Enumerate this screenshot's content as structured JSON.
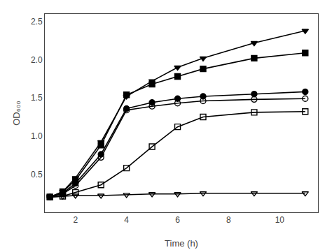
{
  "chart_data": {
    "type": "line",
    "xlabel": "Time (h)",
    "ylabel": "OD₆₀₀",
    "x": [
      1.0,
      1.5,
      2.0,
      3.0,
      4.0,
      5.0,
      6.0,
      7.0,
      9.0,
      11.0
    ],
    "series": [
      {
        "color": "black",
        "marker": "triangle-down",
        "values": [
          0.2,
          0.27,
          0.45,
          0.92,
          1.52,
          1.72,
          1.9,
          2.02,
          2.22,
          2.38
        ]
      },
      {
        "color": "black",
        "marker": "square",
        "values": [
          0.2,
          0.27,
          0.42,
          0.88,
          1.54,
          1.68,
          1.78,
          1.88,
          2.02,
          2.09
        ]
      },
      {
        "color": "black",
        "marker": "circle",
        "values": [
          0.2,
          0.25,
          0.38,
          0.76,
          1.36,
          1.44,
          1.49,
          1.52,
          1.55,
          1.58
        ]
      },
      {
        "color": "black",
        "marker": "circle-open",
        "values": [
          0.2,
          0.24,
          0.35,
          0.72,
          1.34,
          1.39,
          1.43,
          1.46,
          1.48,
          1.49
        ]
      },
      {
        "color": "black",
        "marker": "square-open",
        "values": [
          0.2,
          0.21,
          0.26,
          0.36,
          0.58,
          0.86,
          1.12,
          1.25,
          1.31,
          1.32
        ]
      },
      {
        "color": "black",
        "marker": "triangle-down-open",
        "values": [
          0.2,
          0.21,
          0.22,
          0.22,
          0.23,
          0.24,
          0.24,
          0.25,
          0.25,
          0.25
        ]
      }
    ],
    "xlim": [
      0.8,
      11.5
    ],
    "ylim": [
      0.0,
      2.6
    ],
    "xticks": [
      2,
      4,
      6,
      8,
      10
    ],
    "yticks": [
      0.5,
      {
        "value": 1.0,
        "label": "1.0"
      },
      1.5,
      {
        "value": 2.0,
        "label": "2.0"
      },
      2.5
    ],
    "grid": false
  }
}
